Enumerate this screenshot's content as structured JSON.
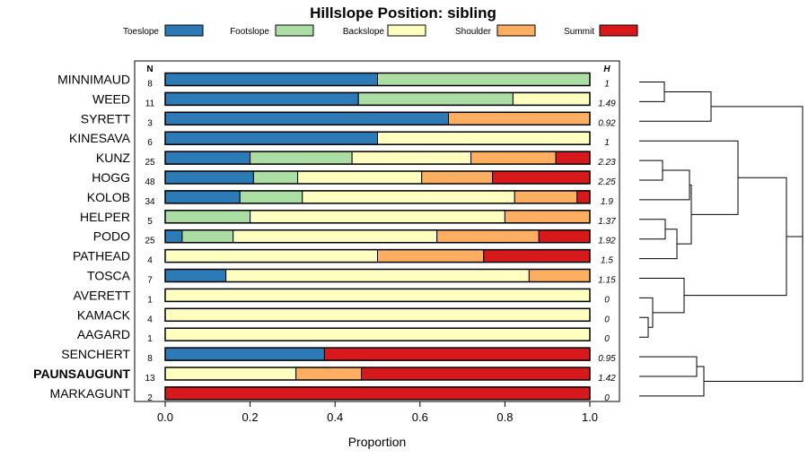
{
  "chart_data": {
    "type": "stacked-bar-horizontal",
    "title": "Hillslope Position: sibling",
    "xlabel": "Proportion",
    "xlim": [
      0,
      1
    ],
    "xticks": [
      "0.0",
      "0.2",
      "0.4",
      "0.6",
      "0.8",
      "1.0"
    ],
    "n_header": "N",
    "h_header": "H",
    "bold_category": "PAUNSAUGUNT",
    "legend": [
      {
        "name": "Toeslope",
        "color": "#2c7bb6"
      },
      {
        "name": "Footslope",
        "color": "#abdda4"
      },
      {
        "name": "Backslope",
        "color": "#ffffbf"
      },
      {
        "name": "Shoulder",
        "color": "#fdae61"
      },
      {
        "name": "Summit",
        "color": "#d7191c"
      }
    ],
    "rows": [
      {
        "name": "MINNIMAUD",
        "n": "8",
        "h": "1",
        "values": [
          0.5,
          0.5,
          0,
          0,
          0
        ]
      },
      {
        "name": "WEED",
        "n": "11",
        "h": "1.49",
        "values": [
          0.455,
          0.364,
          0.181,
          0,
          0
        ]
      },
      {
        "name": "SYRETT",
        "n": "3",
        "h": "0.92",
        "values": [
          0.667,
          0,
          0,
          0.333,
          0
        ]
      },
      {
        "name": "KINESAVA",
        "n": "6",
        "h": "1",
        "values": [
          0.5,
          0,
          0.5,
          0,
          0
        ]
      },
      {
        "name": "KUNZ",
        "n": "25",
        "h": "2.23",
        "values": [
          0.2,
          0.24,
          0.28,
          0.2,
          0.08
        ]
      },
      {
        "name": "HOGG",
        "n": "48",
        "h": "2.25",
        "values": [
          0.208,
          0.104,
          0.292,
          0.167,
          0.229
        ]
      },
      {
        "name": "KOLOB",
        "n": "34",
        "h": "1.9",
        "values": [
          0.176,
          0.147,
          0.5,
          0.147,
          0.03
        ]
      },
      {
        "name": "HELPER",
        "n": "5",
        "h": "1.37",
        "values": [
          0,
          0.2,
          0.6,
          0.2,
          0
        ]
      },
      {
        "name": "PODO",
        "n": "25",
        "h": "1.92",
        "values": [
          0.04,
          0.12,
          0.48,
          0.24,
          0.12
        ]
      },
      {
        "name": "PATHEAD",
        "n": "4",
        "h": "1.5",
        "values": [
          0,
          0,
          0.5,
          0.25,
          0.25
        ]
      },
      {
        "name": "TOSCA",
        "n": "7",
        "h": "1.15",
        "values": [
          0.143,
          0,
          0.714,
          0.143,
          0
        ]
      },
      {
        "name": "AVERETT",
        "n": "1",
        "h": "0",
        "values": [
          0,
          0,
          1,
          0,
          0
        ]
      },
      {
        "name": "KAMACK",
        "n": "4",
        "h": "0",
        "values": [
          0,
          0,
          1,
          0,
          0
        ]
      },
      {
        "name": "AAGARD",
        "n": "1",
        "h": "0",
        "values": [
          0,
          0,
          1,
          0,
          0
        ]
      },
      {
        "name": "SENCHERT",
        "n": "8",
        "h": "0.95",
        "values": [
          0.375,
          0,
          0,
          0,
          0.625
        ]
      },
      {
        "name": "PAUNSAUGUNT",
        "n": "13",
        "h": "1.42",
        "values": [
          0,
          0,
          0.308,
          0.154,
          0.538
        ]
      },
      {
        "name": "MARKAGUNT",
        "n": "2",
        "h": "0",
        "values": [
          0,
          0,
          0,
          0,
          1
        ]
      }
    ]
  }
}
